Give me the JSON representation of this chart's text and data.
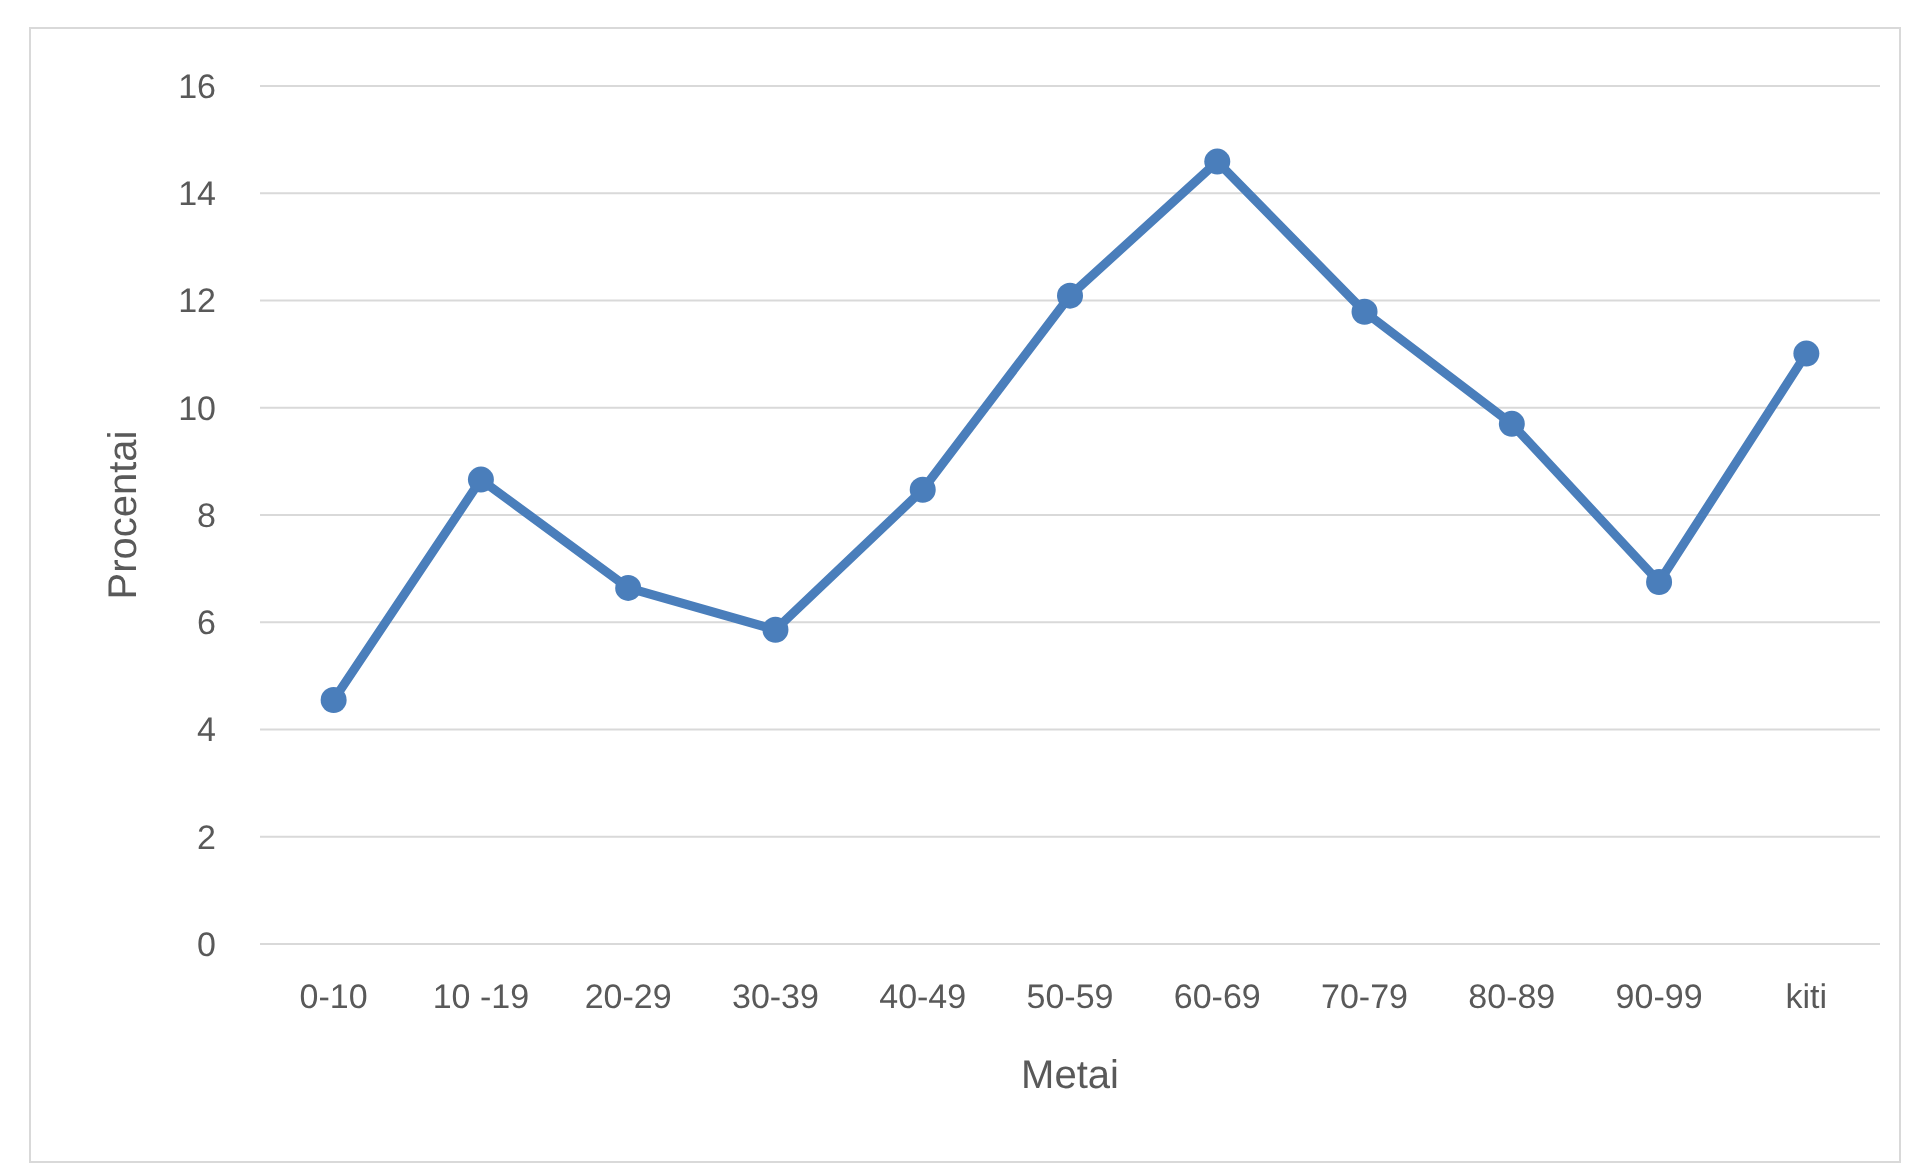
{
  "chart_data": {
    "type": "line",
    "xlabel": "Metai",
    "ylabel": "Procentai",
    "categories": [
      "0-10",
      "10 -19",
      "20-29",
      "30-39",
      "40-49",
      "50-59",
      "60-69",
      "70-79",
      "80-89",
      "90-99",
      "kiti"
    ],
    "series": [
      {
        "color": "#4a7ebb",
        "values": [
          4.55,
          8.66,
          6.64,
          5.86,
          8.47,
          12.09,
          14.59,
          11.79,
          9.7,
          6.75,
          11.01
        ]
      }
    ],
    "ylim": [
      0,
      16
    ],
    "yticks": [
      0,
      2,
      4,
      6,
      8,
      10,
      12,
      14,
      16
    ],
    "grid": "y",
    "marker": "circle",
    "line_style": "solid"
  }
}
